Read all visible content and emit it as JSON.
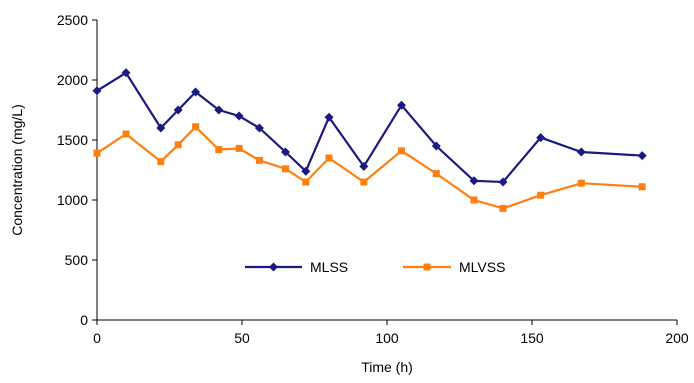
{
  "chart_data": {
    "type": "line",
    "title": "",
    "xlabel": "Time (h)",
    "ylabel": "Concentration (mg/L)",
    "xlim": [
      0,
      200
    ],
    "ylim": [
      0,
      2500
    ],
    "xticks": [
      0,
      50,
      100,
      150,
      200
    ],
    "yticks": [
      0,
      500,
      1000,
      1500,
      2000,
      2500
    ],
    "grid": false,
    "legend_position": "center",
    "series": [
      {
        "name": "MLSS",
        "color": "#1a1a80",
        "marker": "diamond",
        "x": [
          0,
          10,
          22,
          28,
          34,
          42,
          49,
          56,
          65,
          72,
          80,
          92,
          105,
          117,
          130,
          140,
          153,
          167,
          188
        ],
        "y": [
          1910,
          2060,
          1600,
          1750,
          1900,
          1750,
          1700,
          1600,
          1400,
          1240,
          1690,
          1280,
          1790,
          1450,
          1160,
          1150,
          1520,
          1400,
          1370
        ]
      },
      {
        "name": "MLVSS",
        "color": "#ff7f0e",
        "marker": "square",
        "x": [
          0,
          10,
          22,
          28,
          34,
          42,
          49,
          56,
          65,
          72,
          80,
          92,
          105,
          117,
          130,
          140,
          153,
          167,
          188
        ],
        "y": [
          1390,
          1550,
          1320,
          1460,
          1610,
          1420,
          1430,
          1330,
          1260,
          1150,
          1350,
          1150,
          1410,
          1220,
          1000,
          930,
          1040,
          1140,
          1110
        ]
      }
    ]
  }
}
